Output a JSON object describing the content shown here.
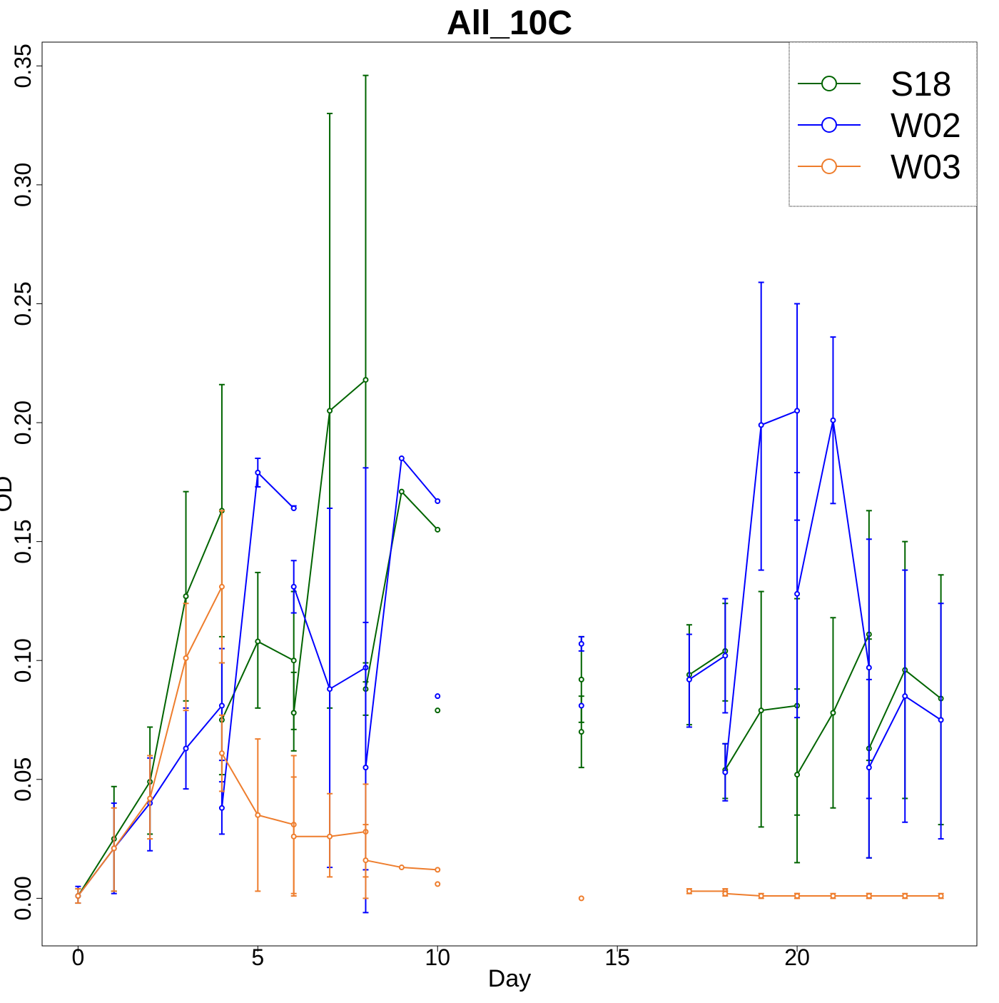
{
  "chart_data": {
    "type": "line",
    "title": "All_10C",
    "xlabel": "Day",
    "ylabel": "OD",
    "xlim": [
      -1,
      25
    ],
    "ylim": [
      -0.02,
      0.36
    ],
    "x_ticks": [
      0,
      5,
      10,
      15,
      20
    ],
    "y_ticks": [
      0.0,
      0.05,
      0.1,
      0.15,
      0.2,
      0.25,
      0.3,
      0.35
    ],
    "y_tick_labels": [
      "0.00",
      "0.05",
      "0.10",
      "0.15",
      "0.20",
      "0.25",
      "0.30",
      "0.35"
    ],
    "legend_position": "top-right",
    "grid": false,
    "series": [
      {
        "name": "S18",
        "color": "#006400",
        "segments": [
          [
            {
              "x": 0,
              "y": 0.001,
              "lo": -0.002,
              "hi": 0.004
            },
            {
              "x": 1,
              "y": 0.025,
              "lo": 0.003,
              "hi": 0.047
            },
            {
              "x": 2,
              "y": 0.049,
              "lo": 0.027,
              "hi": 0.072
            },
            {
              "x": 3,
              "y": 0.127,
              "lo": 0.083,
              "hi": 0.171
            },
            {
              "x": 4,
              "y": 0.163,
              "lo": 0.11,
              "hi": 0.216
            }
          ],
          [
            {
              "x": 4,
              "y": 0.075,
              "lo": 0.052,
              "hi": 0.099
            },
            {
              "x": 5,
              "y": 0.108,
              "lo": 0.08,
              "hi": 0.137
            },
            {
              "x": 6,
              "y": 0.1,
              "lo": 0.071,
              "hi": 0.129
            }
          ],
          [
            {
              "x": 6,
              "y": 0.078,
              "lo": 0.062,
              "hi": 0.095
            },
            {
              "x": 7,
              "y": 0.205,
              "lo": 0.08,
              "hi": 0.33
            },
            {
              "x": 8,
              "y": 0.218,
              "lo": 0.091,
              "hi": 0.346
            }
          ],
          [
            {
              "x": 8,
              "y": 0.088,
              "lo": 0.077,
              "hi": 0.099
            },
            {
              "x": 9,
              "y": 0.171
            },
            {
              "x": 10,
              "y": 0.155
            }
          ],
          [
            {
              "x": 10,
              "y": 0.079
            }
          ],
          [
            {
              "x": 14,
              "y": 0.092,
              "lo": 0.074,
              "hi": 0.11
            }
          ],
          [
            {
              "x": 14,
              "y": 0.07,
              "lo": 0.055,
              "hi": 0.085
            }
          ],
          [
            {
              "x": 17,
              "y": 0.094,
              "lo": 0.073,
              "hi": 0.115
            },
            {
              "x": 18,
              "y": 0.104,
              "lo": 0.083,
              "hi": 0.124
            }
          ],
          [
            {
              "x": 18,
              "y": 0.054,
              "lo": 0.042,
              "hi": 0.065
            },
            {
              "x": 19,
              "y": 0.079,
              "lo": 0.03,
              "hi": 0.129
            },
            {
              "x": 20,
              "y": 0.081,
              "lo": 0.035,
              "hi": 0.126
            }
          ],
          [
            {
              "x": 20,
              "y": 0.052,
              "lo": 0.015,
              "hi": 0.088
            },
            {
              "x": 21,
              "y": 0.078,
              "lo": 0.038,
              "hi": 0.118
            },
            {
              "x": 22,
              "y": 0.111,
              "lo": 0.058,
              "hi": 0.163
            }
          ],
          [
            {
              "x": 22,
              "y": 0.063,
              "lo": 0.017,
              "hi": 0.109
            },
            {
              "x": 23,
              "y": 0.096,
              "lo": 0.042,
              "hi": 0.15
            },
            {
              "x": 24,
              "y": 0.084,
              "lo": 0.031,
              "hi": 0.136
            }
          ]
        ]
      },
      {
        "name": "W02",
        "color": "#0000ff",
        "segments": [
          [
            {
              "x": 0,
              "y": 0.001,
              "lo": -0.002,
              "hi": 0.005
            },
            {
              "x": 1,
              "y": 0.021,
              "lo": 0.002,
              "hi": 0.04
            },
            {
              "x": 2,
              "y": 0.04,
              "lo": 0.02,
              "hi": 0.059
            },
            {
              "x": 3,
              "y": 0.063,
              "lo": 0.046,
              "hi": 0.08
            },
            {
              "x": 4,
              "y": 0.081,
              "lo": 0.058,
              "hi": 0.105
            }
          ],
          [
            {
              "x": 4,
              "y": 0.038,
              "lo": 0.027,
              "hi": 0.049
            },
            {
              "x": 5,
              "y": 0.179,
              "lo": 0.173,
              "hi": 0.185
            },
            {
              "x": 6,
              "y": 0.164,
              "lo": 0.164,
              "hi": 0.165
            }
          ],
          [
            {
              "x": 6,
              "y": 0.131,
              "lo": 0.12,
              "hi": 0.142
            },
            {
              "x": 7,
              "y": 0.088,
              "lo": 0.013,
              "hi": 0.164
            },
            {
              "x": 8,
              "y": 0.097,
              "lo": 0.012,
              "hi": 0.181
            }
          ],
          [
            {
              "x": 8,
              "y": 0.055,
              "lo": -0.006,
              "hi": 0.116
            },
            {
              "x": 9,
              "y": 0.185
            },
            {
              "x": 10,
              "y": 0.167
            }
          ],
          [
            {
              "x": 10,
              "y": 0.085
            }
          ],
          [
            {
              "x": 14,
              "y": 0.107,
              "lo": 0.104,
              "hi": 0.11
            }
          ],
          [
            {
              "x": 14,
              "y": 0.081
            }
          ],
          [
            {
              "x": 17,
              "y": 0.092,
              "lo": 0.072,
              "hi": 0.111
            },
            {
              "x": 18,
              "y": 0.102,
              "lo": 0.078,
              "hi": 0.126
            }
          ],
          [
            {
              "x": 18,
              "y": 0.053,
              "lo": 0.041,
              "hi": 0.065
            },
            {
              "x": 19,
              "y": 0.199,
              "lo": 0.138,
              "hi": 0.259
            },
            {
              "x": 20,
              "y": 0.205,
              "lo": 0.159,
              "hi": 0.25
            }
          ],
          [
            {
              "x": 20,
              "y": 0.128,
              "lo": 0.076,
              "hi": 0.179
            },
            {
              "x": 21,
              "y": 0.201,
              "lo": 0.166,
              "hi": 0.236
            },
            {
              "x": 22,
              "y": 0.097,
              "lo": 0.042,
              "hi": 0.151
            }
          ],
          [
            {
              "x": 22,
              "y": 0.055,
              "lo": 0.017,
              "hi": 0.092
            },
            {
              "x": 23,
              "y": 0.085,
              "lo": 0.032,
              "hi": 0.138
            },
            {
              "x": 24,
              "y": 0.075,
              "lo": 0.025,
              "hi": 0.124
            }
          ]
        ]
      },
      {
        "name": "W03",
        "color": "#ee7d2d",
        "segments": [
          [
            {
              "x": 0,
              "y": 0.001,
              "lo": -0.002,
              "hi": 0.004
            },
            {
              "x": 1,
              "y": 0.021,
              "lo": 0.003,
              "hi": 0.038
            },
            {
              "x": 2,
              "y": 0.042,
              "lo": 0.025,
              "hi": 0.06
            },
            {
              "x": 3,
              "y": 0.101,
              "lo": 0.079,
              "hi": 0.124
            },
            {
              "x": 4,
              "y": 0.131,
              "lo": 0.099,
              "hi": 0.163
            }
          ],
          [
            {
              "x": 4,
              "y": 0.061,
              "lo": 0.045,
              "hi": 0.077
            },
            {
              "x": 5,
              "y": 0.035,
              "lo": 0.003,
              "hi": 0.067
            },
            {
              "x": 6,
              "y": 0.031,
              "lo": 0.002,
              "hi": 0.06
            }
          ],
          [
            {
              "x": 6,
              "y": 0.026,
              "lo": 0.001,
              "hi": 0.051
            },
            {
              "x": 7,
              "y": 0.026,
              "lo": 0.009,
              "hi": 0.044
            },
            {
              "x": 8,
              "y": 0.028,
              "lo": 0.009,
              "hi": 0.048
            }
          ],
          [
            {
              "x": 8,
              "y": 0.016,
              "lo": 0.0,
              "hi": 0.031
            },
            {
              "x": 9,
              "y": 0.013
            },
            {
              "x": 10,
              "y": 0.012
            }
          ],
          [
            {
              "x": 10,
              "y": 0.006
            }
          ],
          [
            {
              "x": 14,
              "y": 0.0
            }
          ],
          [
            {
              "x": 17,
              "y": 0.003,
              "lo": 0.002,
              "hi": 0.004
            },
            {
              "x": 18,
              "y": 0.003,
              "lo": 0.002,
              "hi": 0.004
            }
          ],
          [
            {
              "x": 18,
              "y": 0.002,
              "lo": 0.001,
              "hi": 0.003
            },
            {
              "x": 19,
              "y": 0.001,
              "lo": 0.0,
              "hi": 0.002
            },
            {
              "x": 20,
              "y": 0.001,
              "lo": 0.0,
              "hi": 0.002
            }
          ],
          [
            {
              "x": 20,
              "y": 0.001,
              "lo": 0.0,
              "hi": 0.002
            },
            {
              "x": 21,
              "y": 0.001,
              "lo": 0.0,
              "hi": 0.002
            },
            {
              "x": 22,
              "y": 0.001,
              "lo": 0.0,
              "hi": 0.002
            }
          ],
          [
            {
              "x": 22,
              "y": 0.001,
              "lo": 0.0,
              "hi": 0.002
            },
            {
              "x": 23,
              "y": 0.001,
              "lo": 0.0,
              "hi": 0.002
            },
            {
              "x": 24,
              "y": 0.001,
              "lo": 0.0,
              "hi": 0.002
            }
          ]
        ]
      }
    ]
  }
}
